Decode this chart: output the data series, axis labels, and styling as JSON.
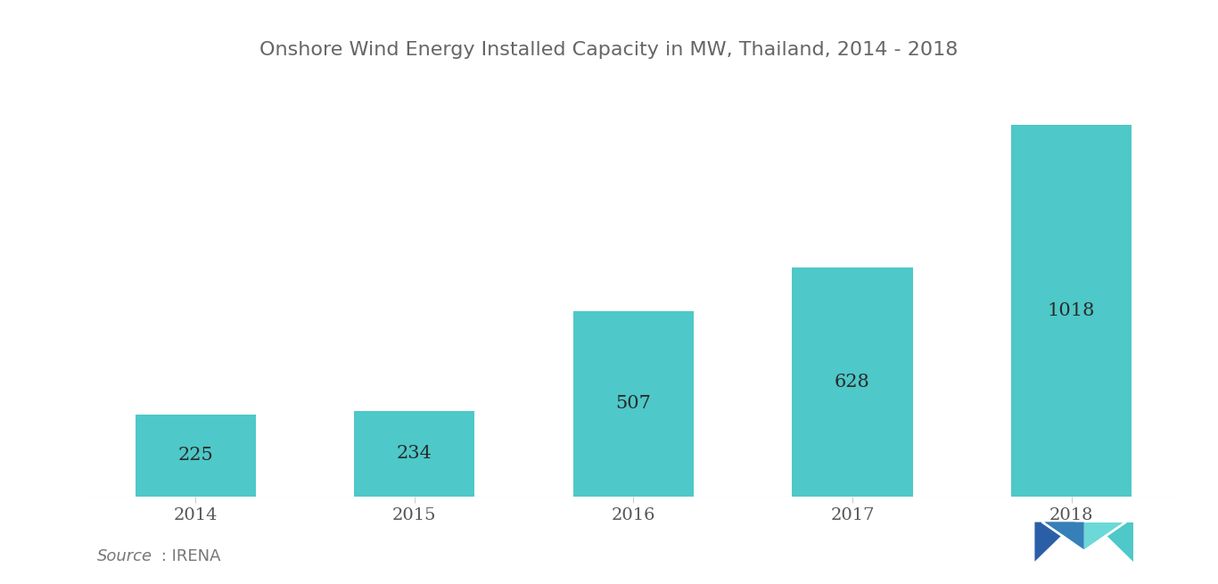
{
  "title": "Onshore Wind Energy Installed Capacity in MW, Thailand, 2014 - 2018",
  "categories": [
    "2014",
    "2015",
    "2016",
    "2017",
    "2018"
  ],
  "values": [
    225,
    234,
    507,
    628,
    1018
  ],
  "bar_color": "#4EC8C8",
  "label_color": "#2a2a2a",
  "title_color": "#666666",
  "tick_color": "#555555",
  "source_color": "#777777",
  "background_color": "#ffffff",
  "ylim": [
    0,
    1120
  ],
  "bar_width": 0.55,
  "title_fontsize": 16,
  "label_fontsize": 15,
  "tick_fontsize": 14,
  "source_fontsize": 13,
  "logo_dark": "#2a5fa8",
  "logo_teal": "#4EC8C8"
}
